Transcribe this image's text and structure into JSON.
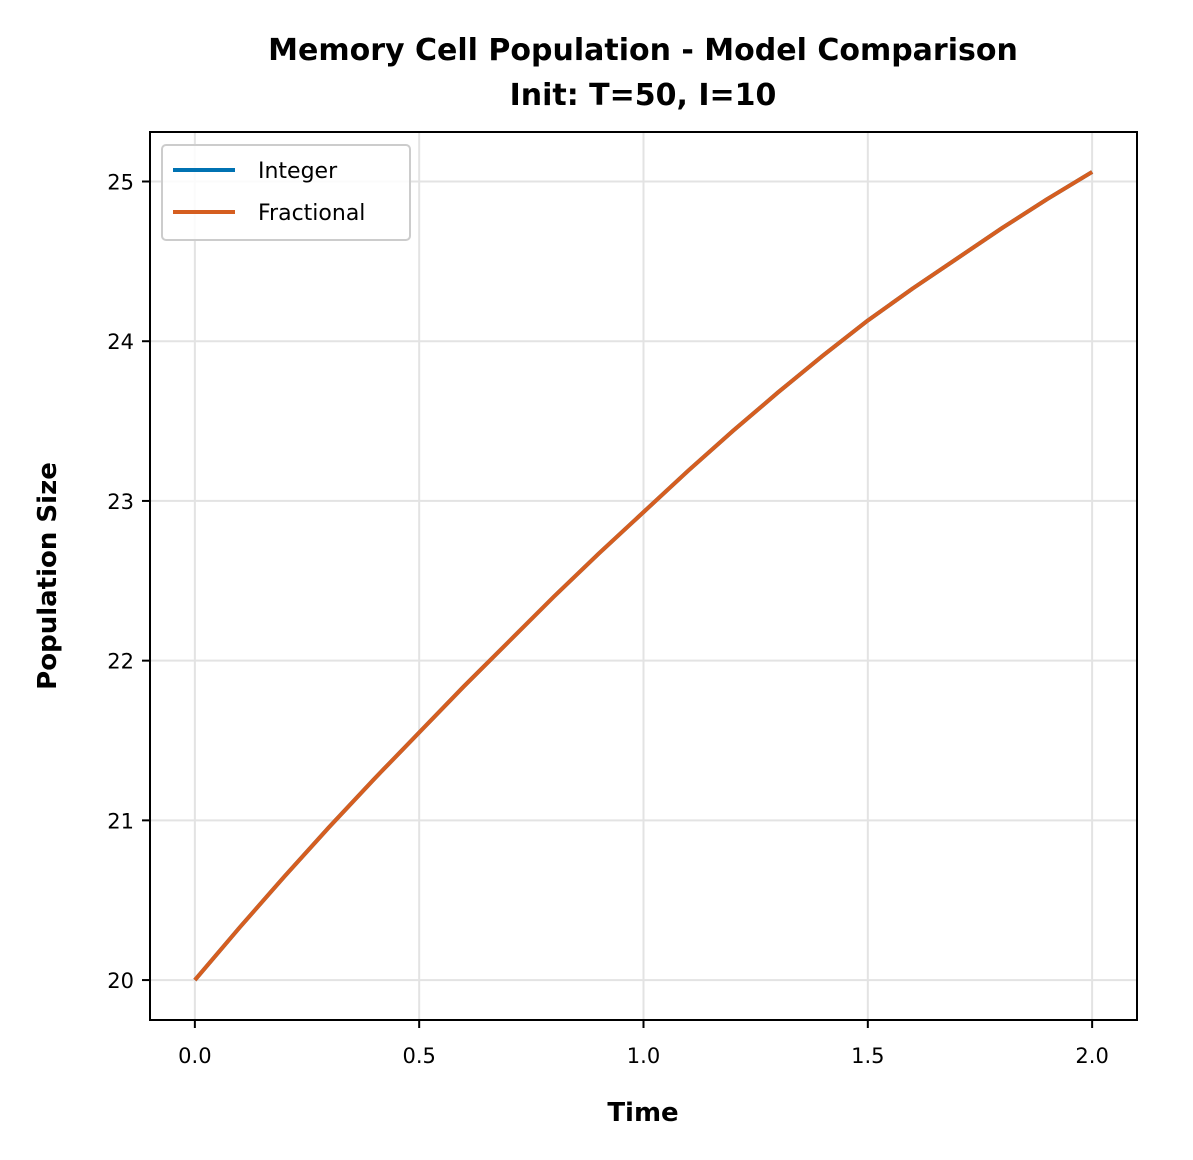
{
  "chart_data": {
    "type": "line",
    "title": "Memory Cell Population - Model Comparison",
    "subtitle": "Init: T=50, I=10",
    "xlabel": "Time",
    "ylabel": "Population Size",
    "xlim": [
      -0.1,
      2.1
    ],
    "ylim": [
      19.75,
      25.31
    ],
    "xticks": [
      "0.0",
      "0.5",
      "1.0",
      "1.5",
      "2.0"
    ],
    "yticks": [
      "20",
      "21",
      "22",
      "23",
      "24",
      "25"
    ],
    "grid": true,
    "legend_position": "top-left",
    "series": [
      {
        "name": "Integer",
        "color": "#0072b2",
        "x": [
          0.0,
          0.1,
          0.2,
          0.3,
          0.4,
          0.5,
          0.6,
          0.7,
          0.8,
          0.9,
          1.0,
          1.1,
          1.2,
          1.3,
          1.4,
          1.5,
          1.6,
          1.7,
          1.8,
          1.9,
          2.0
        ],
        "y": [
          20.0,
          20.33,
          20.65,
          20.96,
          21.26,
          21.55,
          21.84,
          22.12,
          22.4,
          22.67,
          22.93,
          23.19,
          23.44,
          23.68,
          23.91,
          24.13,
          24.33,
          24.52,
          24.71,
          24.89,
          25.06
        ]
      },
      {
        "name": "Fractional",
        "color": "#d55e20",
        "x": [
          0.0,
          0.1,
          0.2,
          0.3,
          0.4,
          0.5,
          0.6,
          0.7,
          0.8,
          0.9,
          1.0,
          1.1,
          1.2,
          1.3,
          1.4,
          1.5,
          1.6,
          1.7,
          1.8,
          1.9,
          2.0
        ],
        "y": [
          20.0,
          20.33,
          20.65,
          20.96,
          21.26,
          21.55,
          21.84,
          22.12,
          22.4,
          22.67,
          22.93,
          23.19,
          23.44,
          23.68,
          23.91,
          24.13,
          24.33,
          24.52,
          24.71,
          24.89,
          25.06
        ]
      }
    ]
  }
}
